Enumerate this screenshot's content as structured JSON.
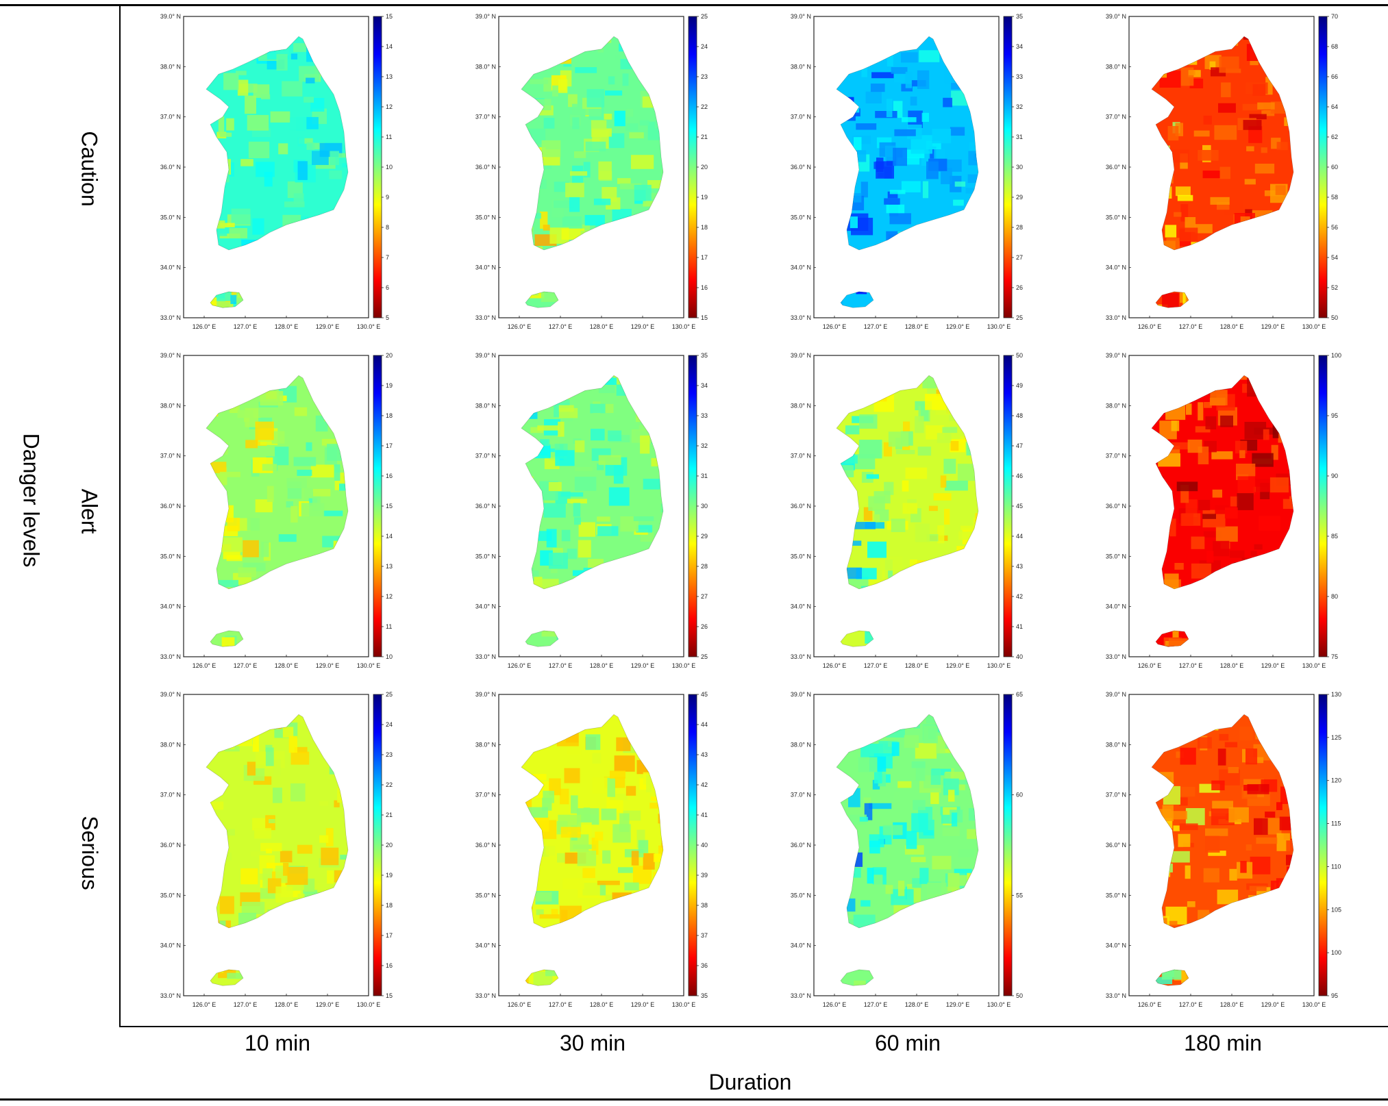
{
  "figure": {
    "y_axis_title": "Danger levels",
    "x_axis_title": "Duration",
    "rows": [
      "Caution",
      "Alert",
      "Serious"
    ],
    "columns": [
      "10 min",
      "30 min",
      "60 min",
      "180 min"
    ]
  },
  "map_axes": {
    "lat_labels": [
      "39.0° N",
      "38.0° N",
      "37.0° N",
      "36.0° N",
      "35.0° N",
      "34.0° N",
      "33.0° N"
    ],
    "lon_labels": [
      "126.0° E",
      "127.0° E",
      "128.0° E",
      "129.0° E",
      "130.0° E"
    ]
  },
  "colormap": {
    "name": "jet-reversed",
    "stops": [
      "#7f0000",
      "#ff0000",
      "#ff8000",
      "#ffff00",
      "#80ff80",
      "#00ffff",
      "#0080ff",
      "#0000ff",
      "#00007f"
    ]
  },
  "panels": [
    {
      "row": "Caution",
      "col": "10 min",
      "min": 5,
      "max": 15,
      "ticks": [
        "15",
        "14",
        "13",
        "12",
        "11",
        "10",
        "9",
        "8",
        "7",
        "6",
        "5"
      ],
      "base": 0.58,
      "west": 0.4
    },
    {
      "row": "Caution",
      "col": "30 min",
      "min": 15,
      "max": 25,
      "ticks": [
        "25",
        "24",
        "23",
        "22",
        "21",
        "20",
        "19",
        "18",
        "17",
        "16",
        "15"
      ],
      "base": 0.52,
      "west": 0.36
    },
    {
      "row": "Caution",
      "col": "60 min",
      "min": 25,
      "max": 35,
      "ticks": [
        "35",
        "34",
        "33",
        "32",
        "31",
        "30",
        "29",
        "28",
        "27",
        "26",
        "25"
      ],
      "base": 0.68,
      "west": 0.8
    },
    {
      "row": "Caution",
      "col": "180 min",
      "min": 50,
      "max": 70,
      "ticks": [
        "70",
        "68",
        "66",
        "64",
        "62",
        "60",
        "58",
        "56",
        "54",
        "52",
        "50"
      ],
      "base": 0.18,
      "west": 0.45
    },
    {
      "row": "Alert",
      "col": "10 min",
      "min": 10,
      "max": 20,
      "ticks": [
        "20",
        "19",
        "18",
        "17",
        "16",
        "15",
        "14",
        "13",
        "12",
        "11",
        "10"
      ],
      "base": 0.48,
      "west": 0.36
    },
    {
      "row": "Alert",
      "col": "30 min",
      "min": 25,
      "max": 35,
      "ticks": [
        "35",
        "34",
        "33",
        "32",
        "31",
        "30",
        "29",
        "28",
        "27",
        "26",
        "25"
      ],
      "base": 0.5,
      "west": 0.55
    },
    {
      "row": "Alert",
      "col": "60 min",
      "min": 40,
      "max": 50,
      "ticks": [
        "50",
        "49",
        "48",
        "47",
        "46",
        "45",
        "44",
        "43",
        "42",
        "41",
        "40"
      ],
      "base": 0.42,
      "west": 0.7
    },
    {
      "row": "Alert",
      "col": "180 min",
      "min": 75,
      "max": 100,
      "ticks": [
        "100",
        "95",
        "90",
        "85",
        "80",
        "75"
      ],
      "base": 0.12,
      "west": 0.35
    },
    {
      "row": "Serious",
      "col": "10 min",
      "min": 15,
      "max": 25,
      "ticks": [
        "25",
        "24",
        "23",
        "22",
        "21",
        "20",
        "19",
        "18",
        "17",
        "16",
        "15"
      ],
      "base": 0.42,
      "west": 0.36
    },
    {
      "row": "Serious",
      "col": "30 min",
      "min": 35,
      "max": 45,
      "ticks": [
        "45",
        "44",
        "43",
        "42",
        "41",
        "40",
        "39",
        "38",
        "37",
        "36",
        "35"
      ],
      "base": 0.4,
      "west": 0.45
    },
    {
      "row": "Serious",
      "col": "60 min",
      "min": 50,
      "max": 65,
      "ticks": [
        "65",
        "60",
        "55",
        "50"
      ],
      "base": 0.5,
      "west": 0.78
    },
    {
      "row": "Serious",
      "col": "180 min",
      "min": 95,
      "max": 130,
      "ticks": [
        "130",
        "125",
        "120",
        "115",
        "110",
        "105",
        "100",
        "95"
      ],
      "base": 0.2,
      "west": 0.5
    }
  ]
}
